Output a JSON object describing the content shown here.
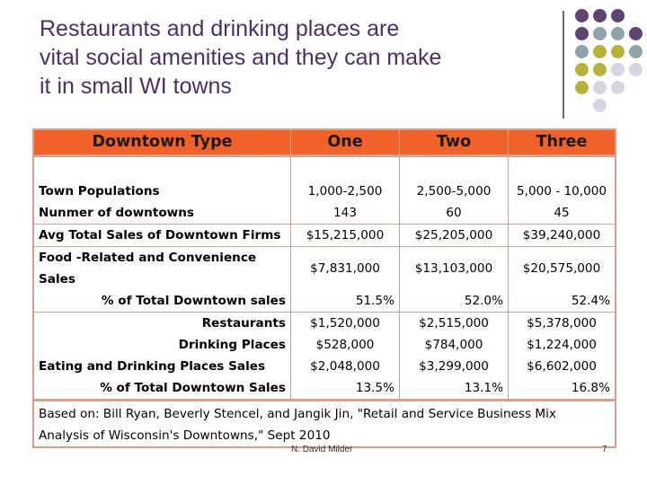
{
  "title": {
    "line1": "Restaurants and drinking places are",
    "line2": "vital social amenities and they can make",
    "line3": "it in small WI towns"
  },
  "colors": {
    "title": "#4b2e6a",
    "header_fill": "#f0622a",
    "border": "#d9a088",
    "dot_purple": "#5e4470",
    "dot_gray": "#8fa3ab",
    "dot_yellow": "#b7b33a",
    "dot_light": "#d6d6e2"
  },
  "table": {
    "header": [
      "Downtown Type",
      "One",
      "Two",
      "Three"
    ],
    "town_populations": {
      "label": "Town Populations",
      "values": [
        "1,000-2,500",
        "2,500-5,000",
        "5,000 - 10,000"
      ]
    },
    "number_of_downtowns": {
      "label": "Nunmer of downtowns",
      "values": [
        "143",
        "60",
        "45"
      ]
    },
    "avg_total_sales": {
      "label": "Avg Total Sales of Downtown Firms",
      "values": [
        "$15,215,000",
        "$25,205,000",
        "$39,240,000"
      ]
    },
    "food_related": {
      "label_line1": "Food -Related and Convenience",
      "label_line2": "Sales",
      "values": [
        "$7,831,000",
        "$13,103,000",
        "$20,575,000"
      ]
    },
    "food_pct": {
      "label": "% of Total Downtown sales",
      "values": [
        "51.5%",
        "52.0%",
        "52.4%"
      ]
    },
    "restaurants": {
      "label": "Restaurants",
      "values": [
        "$1,520,000",
        "$2,515,000",
        "$5,378,000"
      ]
    },
    "drinking_places": {
      "label": "Drinking Places",
      "values": [
        "$528,000",
        "$784,000",
        "$1,224,000"
      ]
    },
    "eating_drinking": {
      "label": "Eating and Drinking Places Sales",
      "values": [
        "$2,048,000",
        "$3,299,000",
        "$6,602,000"
      ]
    },
    "eating_pct": {
      "label": "% of Total Downtown Sales",
      "values": [
        "13.5%",
        "13.1%",
        "16.8%"
      ]
    },
    "source_line1": "Based on: Bill Ryan, Beverly Stencel, and Jangik Jin, \"Retail and Service Business Mix",
    "source_line2": "Analysis of Wisconsin's Downtowns,\" Sept 2010"
  },
  "footer": {
    "author": "N. David Milder",
    "page_number": "7"
  }
}
